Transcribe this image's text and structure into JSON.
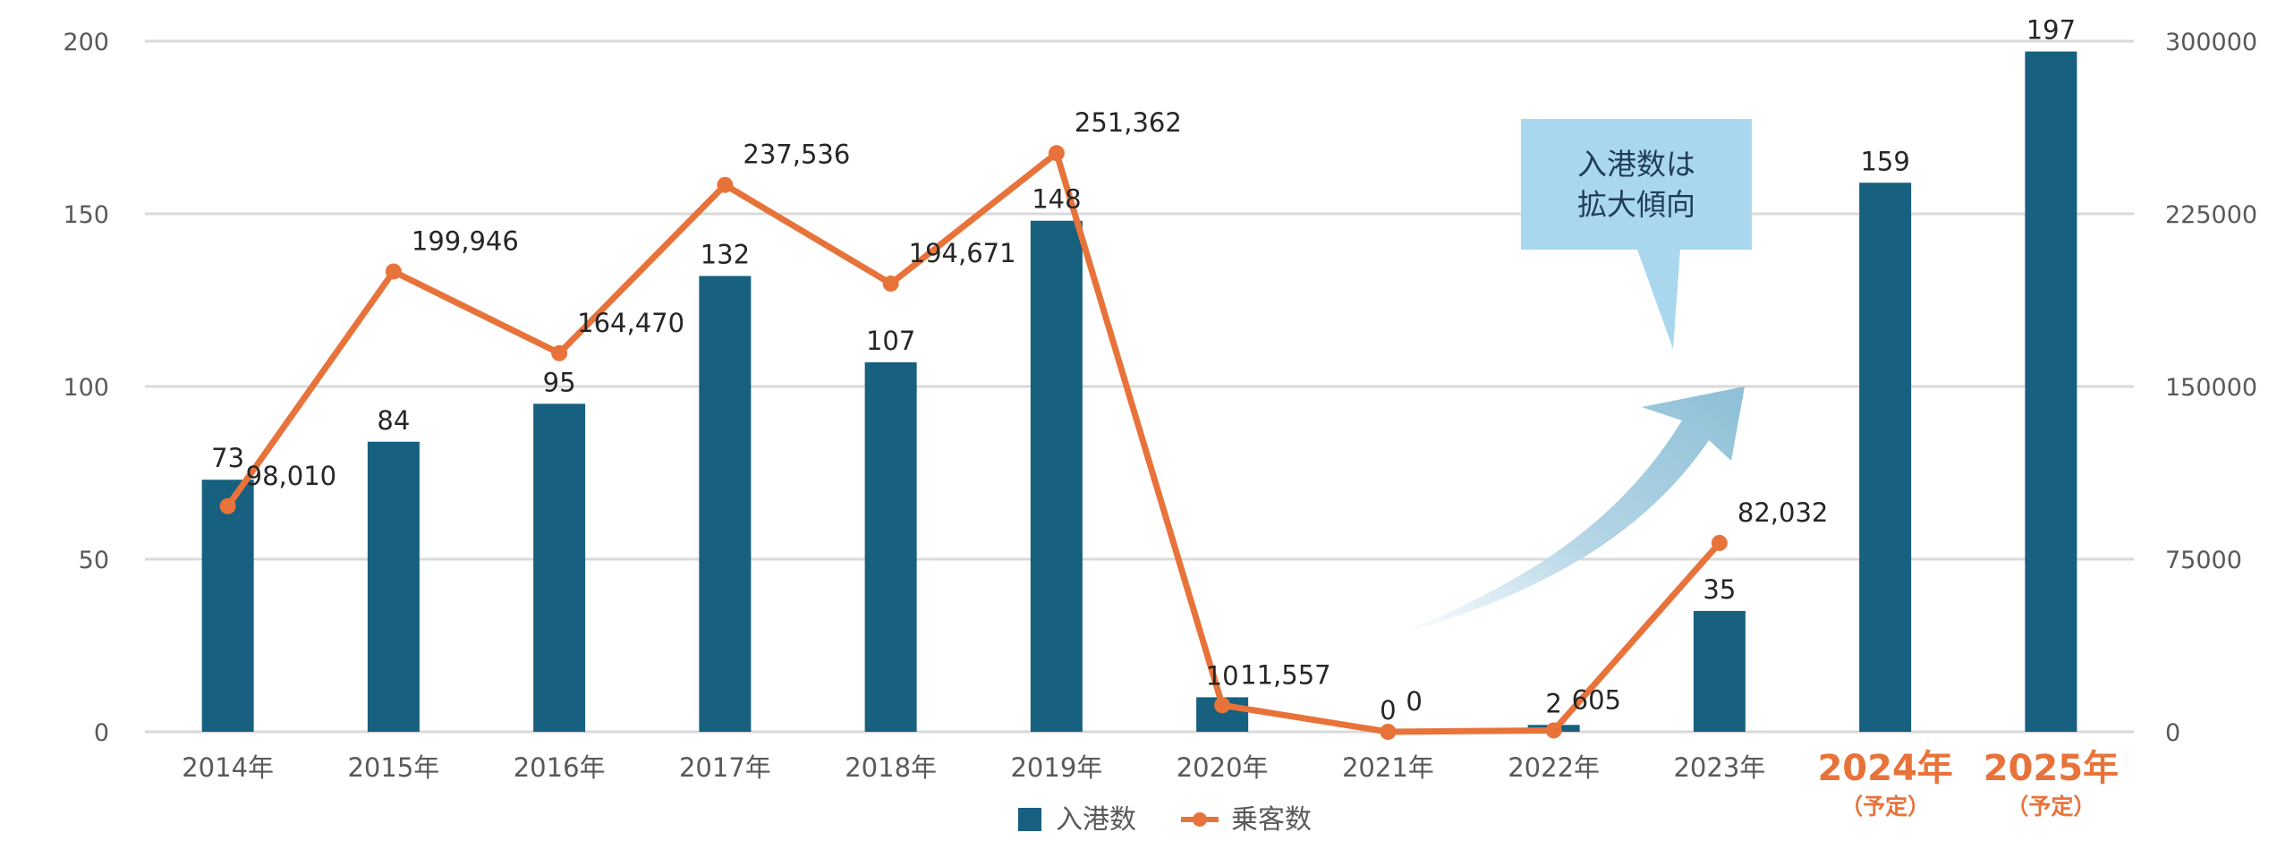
{
  "chart_data": {
    "type": "bar",
    "categories": [
      "2014年",
      "2015年",
      "2016年",
      "2017年",
      "2018年",
      "2019年",
      "2020年",
      "2021年",
      "2022年",
      "2023年",
      "2024年",
      "2025年"
    ],
    "category_notes": [
      "",
      "",
      "",
      "",
      "",
      "",
      "",
      "",
      "",
      "",
      "（予定）",
      "（予定）"
    ],
    "highlight_categories": [
      "2024年",
      "2025年"
    ],
    "series": [
      {
        "name": "入港数",
        "type": "bar",
        "axis": "left",
        "color": "#17607f",
        "values": [
          73,
          84,
          95,
          132,
          107,
          148,
          10,
          0,
          2,
          35,
          159,
          197
        ],
        "labels": [
          "73",
          "84",
          "95",
          "132",
          "107",
          "148",
          "10",
          "0",
          "2",
          "35",
          "159",
          "197"
        ]
      },
      {
        "name": "乗客数",
        "type": "line",
        "axis": "right",
        "color": "#e8733a",
        "values": [
          98010,
          199946,
          164470,
          237536,
          194671,
          251362,
          11557,
          0,
          605,
          82032,
          null,
          null
        ],
        "labels": [
          "98,010",
          "199,946",
          "164,470",
          "237,536",
          "194,671",
          "251,362",
          "11,557",
          "0",
          "605",
          "82,032",
          "",
          ""
        ]
      }
    ],
    "y_left": {
      "min": 0,
      "max": 200,
      "ticks": [
        0,
        50,
        100,
        150,
        200
      ]
    },
    "y_right": {
      "min": 0,
      "max": 300000,
      "ticks": [
        "0",
        "75000",
        "150000",
        "225000",
        "300000"
      ]
    },
    "grid": true,
    "legend": {
      "position": "bottom",
      "items": [
        {
          "label": "入港数",
          "marker": "square",
          "color": "#17607f"
        },
        {
          "label": "乗客数",
          "marker": "line-dot",
          "color": "#e8733a"
        }
      ]
    },
    "annotation": {
      "lines": [
        "入港数は",
        "拡大傾向"
      ],
      "bg_color": "#a9d8ee",
      "arrow_color": "#8fbfd6"
    }
  }
}
